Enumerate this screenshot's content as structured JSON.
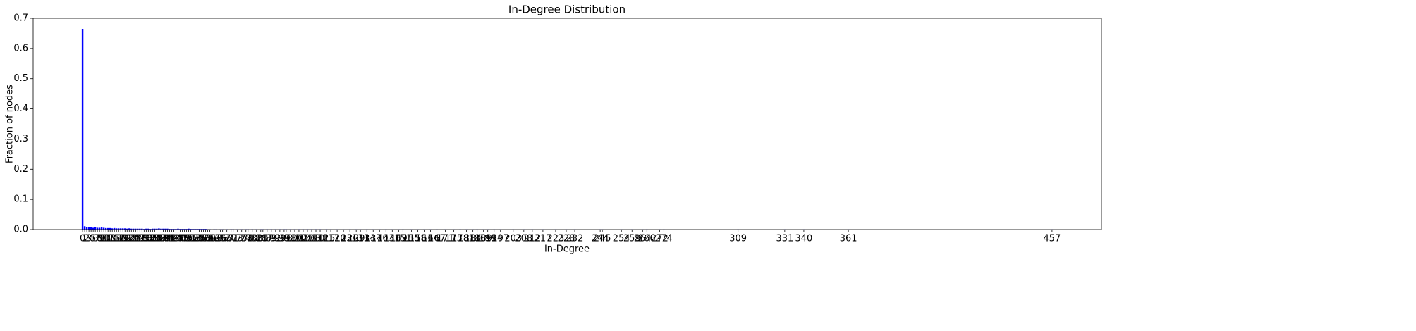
{
  "chart_data": {
    "type": "bar",
    "title": "In-Degree Distribution",
    "xlabel": "In-Degree",
    "ylabel": "Fraction of nodes",
    "color": "#0000ff",
    "x": [
      0,
      1,
      2,
      3,
      4,
      5,
      6,
      7,
      8,
      9,
      10,
      11,
      12,
      13,
      14,
      15,
      16,
      17,
      18,
      19,
      20,
      21,
      22,
      23,
      24,
      25,
      26,
      27,
      28,
      29,
      30,
      31,
      32,
      33,
      34,
      35,
      36,
      37,
      38,
      39,
      40,
      41,
      42,
      43,
      44,
      45,
      46,
      47,
      48,
      49,
      50,
      51,
      52,
      53,
      54,
      55,
      56,
      57,
      58,
      59,
      60,
      62,
      63,
      65,
      66,
      68,
      70,
      71,
      73,
      75,
      77,
      78,
      80,
      82,
      84,
      85,
      87,
      89,
      91,
      93,
      95,
      96,
      98,
      100,
      102,
      104,
      106,
      108,
      110,
      112,
      115,
      117,
      120,
      123,
      126,
      129,
      131,
      134,
      137,
      140,
      143,
      146,
      149,
      151,
      155,
      158,
      161,
      164,
      167,
      171,
      175,
      178,
      181,
      184,
      186,
      189,
      191,
      194,
      197,
      203,
      208,
      212,
      217,
      223,
      228,
      232,
      244,
      245,
      254,
      259,
      264,
      266,
      272,
      274,
      309,
      331,
      340,
      361,
      457
    ],
    "values": [
      0.665,
      0.011,
      0.008,
      0.007,
      0.007,
      0.006,
      0.007,
      0.006,
      0.006,
      0.007,
      0.006,
      0.005,
      0.005,
      0.005,
      0.004,
      0.005,
      0.004,
      0.004,
      0.004,
      0.004,
      0.004,
      0.003,
      0.004,
      0.003,
      0.003,
      0.003,
      0.003,
      0.003,
      0.003,
      0.002,
      0.003,
      0.003,
      0.002,
      0.003,
      0.003,
      0.003,
      0.004,
      0.003,
      0.003,
      0.003,
      0.003,
      0.002,
      0.002,
      0.002,
      0.002,
      0.003,
      0.002,
      0.002,
      0.002,
      0.002,
      0.003,
      0.002,
      0.002,
      0.002,
      0.002,
      0.002,
      0.002,
      0.002,
      0.002,
      0.001,
      0.001,
      0.001,
      0.001,
      0.001,
      0.001,
      0.001,
      0.001,
      0.001,
      0.001,
      0.001,
      0.001,
      0.001,
      0.001,
      0.001,
      0.001,
      0.001,
      0.001,
      0.001,
      0.001,
      0.001,
      0.001,
      0.001,
      0.001,
      0.001,
      0.001,
      0.001,
      0.001,
      0.001,
      0.001,
      0.001,
      0.001,
      0.0005,
      0.0005,
      0.0005,
      0.0005,
      0.0005,
      0.0005,
      0.0005,
      0.0005,
      0.0005,
      0.0005,
      0.0005,
      0.0005,
      0.0005,
      0.0005,
      0.0005,
      0.0005,
      0.0005,
      0.0005,
      0.0005,
      0.0005,
      0.0005,
      0.0005,
      0.0005,
      0.0005,
      0.0005,
      0.0005,
      0.0005,
      0.0005,
      0.0005,
      0.0005,
      0.0005,
      0.0005,
      0.0005,
      0.0005,
      0.0005,
      0.0005,
      0.0005,
      0.0005,
      0.0005,
      0.0005,
      0.0005,
      0.0005,
      0.0005,
      0.0005,
      0.0005,
      0.0005,
      0.0005,
      0.0005
    ],
    "xticks": [
      0,
      1,
      2,
      3,
      4,
      5,
      6,
      7,
      8,
      9,
      10,
      11,
      12,
      13,
      14,
      15,
      16,
      17,
      18,
      19,
      20,
      21,
      22,
      23,
      24,
      25,
      26,
      27,
      28,
      29,
      30,
      31,
      32,
      33,
      34,
      35,
      36,
      37,
      38,
      39,
      40,
      41,
      42,
      43,
      44,
      45,
      46,
      47,
      48,
      49,
      50,
      51,
      52,
      53,
      54,
      55,
      56,
      57,
      58,
      59,
      60,
      62,
      63,
      65,
      66,
      68,
      70,
      71,
      73,
      75,
      77,
      78,
      80,
      82,
      84,
      85,
      87,
      89,
      91,
      93,
      95,
      96,
      98,
      100,
      102,
      104,
      106,
      108,
      110,
      112,
      115,
      117,
      120,
      123,
      126,
      129,
      131,
      134,
      137,
      140,
      143,
      146,
      149,
      151,
      155,
      158,
      161,
      164,
      167,
      171,
      175,
      178,
      181,
      184,
      186,
      189,
      191,
      194,
      197,
      203,
      208,
      212,
      217,
      223,
      228,
      232,
      244,
      245,
      254,
      259,
      264,
      266,
      272,
      274,
      309,
      331,
      340,
      361,
      457
    ],
    "xlim": [
      -23.3,
      480.3
    ],
    "ylim": [
      0,
      0.7
    ],
    "yticks": [
      {
        "value": 0,
        "label": "0.0"
      },
      0.1,
      0.2,
      0.3,
      0.4,
      0.5,
      0.6,
      0.7
    ]
  }
}
